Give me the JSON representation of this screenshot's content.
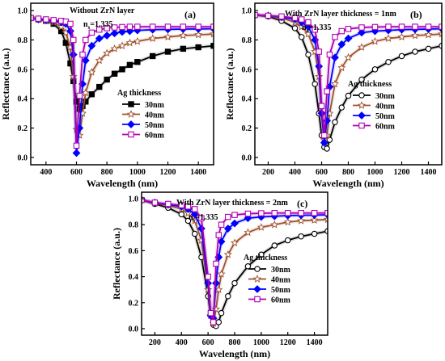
{
  "chart_data": [
    {
      "type": "line",
      "panel": "(a)",
      "annotation": "Without ZrN layer",
      "ns_label": "n",
      "ns_sub": "s",
      "ns_value": "=1.335",
      "xlabel": "Wavelength (nm)",
      "ylabel": "Reflectance (a.u.)",
      "xlim": [
        300,
        1500
      ],
      "ylim": [
        -0.05,
        1.05
      ],
      "xticks": [
        400,
        600,
        800,
        1000,
        1200,
        1400
      ],
      "yticks": [
        0.0,
        0.2,
        0.4,
        0.6,
        0.8,
        1.0
      ],
      "legend_title": "Ag thickness",
      "legend_position": "center-right",
      "series": [
        {
          "name": "30nm",
          "color": "#000000",
          "marker": "square-filled",
          "x": [
            300,
            350,
            400,
            450,
            500,
            530,
            560,
            580,
            600,
            620,
            640,
            660,
            700,
            750,
            800,
            850,
            900,
            950,
            1000,
            1100,
            1200,
            1300,
            1400,
            1500
          ],
          "y": [
            0.95,
            0.94,
            0.93,
            0.91,
            0.86,
            0.78,
            0.64,
            0.52,
            0.38,
            0.33,
            0.35,
            0.38,
            0.43,
            0.48,
            0.53,
            0.57,
            0.6,
            0.63,
            0.65,
            0.69,
            0.72,
            0.74,
            0.75,
            0.76
          ]
        },
        {
          "name": "40nm",
          "color": "#a0522d",
          "marker": "star-open",
          "x": [
            300,
            350,
            400,
            450,
            500,
            530,
            560,
            580,
            600,
            620,
            640,
            660,
            700,
            750,
            800,
            850,
            900,
            950,
            1000,
            1100,
            1200,
            1300,
            1400,
            1500
          ],
          "y": [
            0.95,
            0.94,
            0.93,
            0.92,
            0.89,
            0.85,
            0.75,
            0.55,
            0.19,
            0.15,
            0.3,
            0.44,
            0.58,
            0.66,
            0.71,
            0.74,
            0.76,
            0.78,
            0.79,
            0.81,
            0.82,
            0.83,
            0.835,
            0.84
          ]
        },
        {
          "name": "50nm",
          "color": "#0000ff",
          "marker": "diamond-filled",
          "x": [
            300,
            350,
            400,
            450,
            500,
            530,
            560,
            580,
            600,
            620,
            640,
            660,
            700,
            750,
            800,
            850,
            900,
            950,
            1000,
            1100,
            1200,
            1300,
            1400,
            1500
          ],
          "y": [
            0.95,
            0.94,
            0.935,
            0.93,
            0.92,
            0.91,
            0.86,
            0.7,
            0.03,
            0.2,
            0.5,
            0.66,
            0.76,
            0.81,
            0.83,
            0.845,
            0.855,
            0.86,
            0.865,
            0.87,
            0.872,
            0.874,
            0.875,
            0.876
          ]
        },
        {
          "name": "60nm",
          "color": "#b000b0",
          "marker": "square-open",
          "x": [
            300,
            350,
            400,
            450,
            500,
            530,
            560,
            580,
            600,
            620,
            640,
            660,
            700,
            750,
            800,
            850,
            900,
            950,
            1000,
            1100,
            1200,
            1300,
            1400,
            1500
          ],
          "y": [
            0.95,
            0.945,
            0.94,
            0.935,
            0.93,
            0.925,
            0.91,
            0.8,
            0.08,
            0.42,
            0.7,
            0.8,
            0.85,
            0.87,
            0.88,
            0.885,
            0.888,
            0.89,
            0.89,
            0.89,
            0.89,
            0.89,
            0.89,
            0.89
          ]
        }
      ]
    },
    {
      "type": "line",
      "panel": "(b)",
      "annotation": "With ZrN layer thickness = 1nm",
      "ns_label": "n",
      "ns_sub": "s",
      "ns_value": "=1.335",
      "xlabel": "Wavelength (nm)",
      "ylabel": "Reflectance (a.u.)",
      "xlim": [
        100,
        1500
      ],
      "ylim": [
        -0.05,
        1.05
      ],
      "xticks": [
        200,
        400,
        600,
        800,
        1000,
        1200,
        1400
      ],
      "yticks": [
        0.0,
        0.2,
        0.4,
        0.6,
        0.8,
        1.0
      ],
      "legend_title": "Ag thickness",
      "legend_position": "center-right",
      "series": [
        {
          "name": "30nm",
          "color": "#000000",
          "marker": "circle-open",
          "x": [
            100,
            200,
            300,
            400,
            450,
            500,
            550,
            580,
            600,
            620,
            640,
            660,
            700,
            750,
            800,
            900,
            1000,
            1100,
            1200,
            1300,
            1400,
            1500
          ],
          "y": [
            0.97,
            0.96,
            0.93,
            0.88,
            0.82,
            0.7,
            0.5,
            0.3,
            0.15,
            0.07,
            0.06,
            0.12,
            0.24,
            0.34,
            0.42,
            0.53,
            0.6,
            0.65,
            0.69,
            0.72,
            0.74,
            0.76
          ]
        },
        {
          "name": "40nm",
          "color": "#a0522d",
          "marker": "star-open",
          "x": [
            100,
            200,
            300,
            400,
            450,
            500,
            550,
            580,
            600,
            620,
            640,
            660,
            700,
            750,
            800,
            900,
            1000,
            1100,
            1200,
            1300,
            1400,
            1500
          ],
          "y": [
            0.97,
            0.965,
            0.95,
            0.92,
            0.89,
            0.84,
            0.72,
            0.55,
            0.3,
            0.12,
            0.15,
            0.3,
            0.5,
            0.61,
            0.68,
            0.75,
            0.79,
            0.81,
            0.82,
            0.83,
            0.835,
            0.84
          ]
        },
        {
          "name": "50nm",
          "color": "#0000ff",
          "marker": "diamond-filled",
          "x": [
            100,
            200,
            300,
            400,
            450,
            500,
            550,
            580,
            600,
            620,
            640,
            660,
            700,
            750,
            800,
            900,
            1000,
            1100,
            1200,
            1300,
            1400,
            1500
          ],
          "y": [
            0.97,
            0.965,
            0.955,
            0.94,
            0.92,
            0.89,
            0.8,
            0.62,
            0.3,
            0.1,
            0.25,
            0.48,
            0.68,
            0.77,
            0.81,
            0.85,
            0.86,
            0.865,
            0.87,
            0.872,
            0.874,
            0.876
          ]
        },
        {
          "name": "60nm",
          "color": "#b000b0",
          "marker": "square-open",
          "x": [
            100,
            200,
            300,
            400,
            450,
            500,
            550,
            580,
            600,
            620,
            640,
            660,
            700,
            750,
            800,
            900,
            1000,
            1100,
            1200,
            1300,
            1400,
            1500
          ],
          "y": [
            0.97,
            0.965,
            0.96,
            0.95,
            0.94,
            0.92,
            0.87,
            0.72,
            0.35,
            0.15,
            0.45,
            0.7,
            0.82,
            0.86,
            0.875,
            0.885,
            0.888,
            0.89,
            0.89,
            0.89,
            0.89,
            0.89
          ]
        }
      ]
    },
    {
      "type": "line",
      "panel": "(c)",
      "annotation": "With ZrN layer thickness = 2nm",
      "ns_label": "n",
      "ns_sub": "s",
      "ns_value": "=1.335",
      "xlabel": "Wavelength (nm)",
      "ylabel": "Reflectance (a.u.)",
      "xlim": [
        100,
        1500
      ],
      "ylim": [
        -0.05,
        1.05
      ],
      "xticks": [
        200,
        400,
        600,
        800,
        1000,
        1200,
        1400
      ],
      "yticks": [
        0.0,
        0.2,
        0.4,
        0.6,
        0.8,
        1.0
      ],
      "legend_title": "Ag thickness",
      "legend_position": "center-right",
      "series": [
        {
          "name": "30nm",
          "color": "#000000",
          "marker": "circle-open",
          "x": [
            100,
            200,
            300,
            400,
            450,
            500,
            550,
            600,
            620,
            640,
            660,
            680,
            700,
            750,
            800,
            900,
            1000,
            1100,
            1200,
            1300,
            1400,
            1500
          ],
          "y": [
            0.99,
            0.96,
            0.93,
            0.88,
            0.83,
            0.73,
            0.55,
            0.25,
            0.1,
            0.03,
            0.02,
            0.05,
            0.12,
            0.25,
            0.35,
            0.48,
            0.57,
            0.64,
            0.68,
            0.71,
            0.73,
            0.75
          ]
        },
        {
          "name": "40nm",
          "color": "#a0522d",
          "marker": "star-open",
          "x": [
            100,
            200,
            300,
            400,
            450,
            500,
            550,
            600,
            620,
            640,
            660,
            680,
            700,
            750,
            800,
            900,
            1000,
            1100,
            1200,
            1300,
            1400,
            1500
          ],
          "y": [
            0.99,
            0.965,
            0.95,
            0.92,
            0.89,
            0.83,
            0.68,
            0.3,
            0.1,
            0.04,
            0.15,
            0.3,
            0.42,
            0.57,
            0.66,
            0.74,
            0.78,
            0.8,
            0.82,
            0.83,
            0.835,
            0.84
          ]
        },
        {
          "name": "50nm",
          "color": "#0000ff",
          "marker": "diamond-filled",
          "x": [
            100,
            200,
            300,
            400,
            450,
            500,
            550,
            600,
            620,
            640,
            660,
            680,
            700,
            750,
            800,
            900,
            1000,
            1100,
            1200,
            1300,
            1400,
            1500
          ],
          "y": [
            0.99,
            0.97,
            0.955,
            0.94,
            0.92,
            0.88,
            0.77,
            0.35,
            0.1,
            0.08,
            0.35,
            0.55,
            0.67,
            0.77,
            0.81,
            0.85,
            0.86,
            0.865,
            0.87,
            0.872,
            0.874,
            0.876
          ]
        },
        {
          "name": "60nm",
          "color": "#b000b0",
          "marker": "square-open",
          "x": [
            100,
            200,
            300,
            400,
            450,
            500,
            550,
            600,
            620,
            640,
            660,
            680,
            700,
            750,
            800,
            900,
            1000,
            1100,
            1200,
            1300,
            1400,
            1500
          ],
          "y": [
            0.99,
            0.97,
            0.96,
            0.95,
            0.94,
            0.92,
            0.85,
            0.4,
            0.12,
            0.05,
            0.5,
            0.72,
            0.8,
            0.86,
            0.875,
            0.885,
            0.888,
            0.89,
            0.89,
            0.89,
            0.89,
            0.89
          ]
        }
      ]
    }
  ]
}
